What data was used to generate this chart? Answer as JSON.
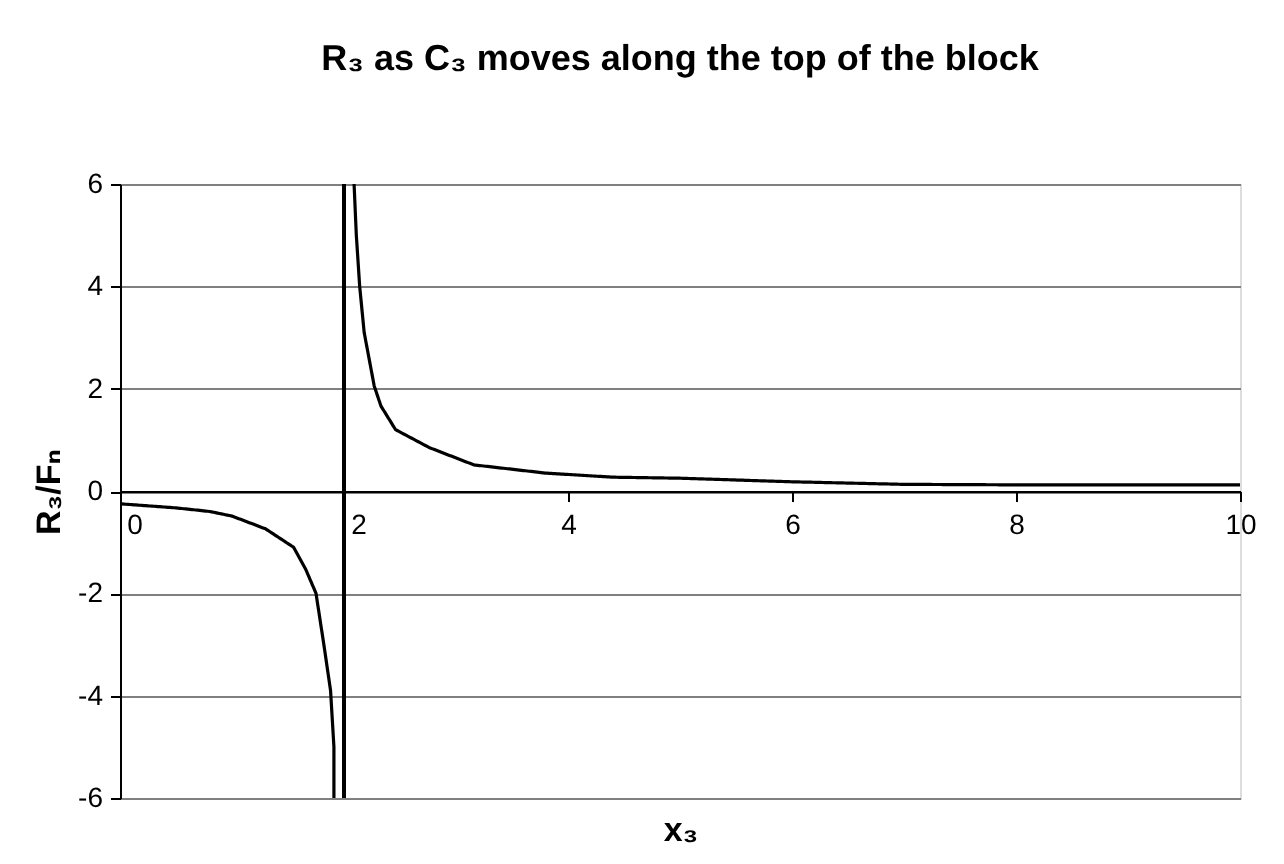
{
  "chart_data": {
    "type": "line",
    "title": "R₃ as C₃ moves along the top of the block",
    "xlabel": "x₃",
    "ylabel": "R₃/Fₙ",
    "xlim": [
      0,
      10
    ],
    "ylim": [
      -6,
      6
    ],
    "xticks": [
      0,
      2,
      4,
      6,
      8,
      10
    ],
    "yticks": [
      -6,
      -4,
      -2,
      0,
      2,
      4,
      6
    ],
    "grid": "y",
    "line_style": "solid",
    "series": [
      {
        "color": "#000000",
        "x": [
          0,
          0.5,
          0.8,
          1.0,
          1.3,
          1.55,
          1.66,
          1.75,
          1.82,
          1.88,
          1.91,
          1.91,
          2,
          2.09,
          2.11,
          2.14,
          2.18,
          2.27,
          2.33,
          2.46,
          2.76,
          3.16,
          3.8,
          4.4,
          5,
          6,
          7,
          8,
          9,
          10
        ],
        "values": [
          -0.25,
          -0.33,
          -0.4,
          -0.49,
          -0.74,
          -1.1,
          -1.54,
          -2.0,
          -3.0,
          -3.9,
          -5.0,
          -6,
          null,
          6,
          5.0,
          4.0,
          3.1,
          2.05,
          1.66,
          1.2,
          0.85,
          0.51,
          0.35,
          0.27,
          0.25,
          0.18,
          0.13,
          0.12,
          0.12,
          0.12
        ]
      }
    ],
    "ref_lines": [
      {
        "axis": "x",
        "value": 2,
        "color": "#000000"
      }
    ]
  }
}
